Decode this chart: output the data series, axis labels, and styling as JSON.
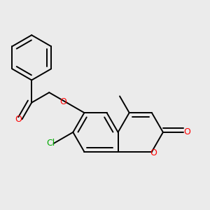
{
  "bg_color": "#ebebeb",
  "bond_color": "#000000",
  "bond_width": 1.4,
  "dbo": 0.018,
  "atom_colors": {
    "O": "#ff0000",
    "Cl": "#00aa00",
    "C": "#000000"
  },
  "font_size": 9,
  "fig_size": [
    3.0,
    3.0
  ],
  "dpi": 100
}
